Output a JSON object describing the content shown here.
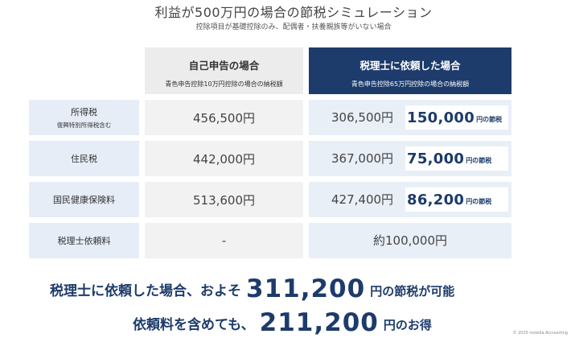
{
  "title": "利益が500万円の場合の節税シミュレーション",
  "subtitle": "控除項目が基礎控除のみ、配偶者・扶養親族等がいない場合",
  "columns": {
    "self": {
      "title": "自己申告の場合",
      "note": "青色申告控除10万円控除の場合の納税額"
    },
    "pro": {
      "title": "税理士に依頼した場合",
      "note": "青色申告控除65万円控除の場合の納税額"
    }
  },
  "rows": [
    {
      "label": "所得税",
      "sublabel": "復興特別所得税含む",
      "self": "456,500円",
      "pro": "306,500円",
      "saving": "150,000",
      "saving_unit": "円の節税"
    },
    {
      "label": "住民税",
      "sublabel": "",
      "self": "442,000円",
      "pro": "367,000円",
      "saving": "75,000",
      "saving_unit": "円の節税"
    },
    {
      "label": "国民健康保険料",
      "sublabel": "",
      "self": "513,600円",
      "pro": "427,400円",
      "saving": "86,200",
      "saving_unit": "円の節税"
    },
    {
      "label": "税理士依頼料",
      "sublabel": "",
      "self": "-",
      "pro": "約100,000円"
    }
  ],
  "summary": {
    "line1_prefix": "税理士に依頼した場合、およそ",
    "line1_amount": "311,200",
    "line1_suffix": "円の節税が可能",
    "line2_prefix": "依頼料を含めても、",
    "line2_amount": "211,200",
    "line2_suffix": "円のお得"
  },
  "copyright": "© 2025 instella Accounting",
  "colors": {
    "navy": "#1d3b6b",
    "label_bg": "#e6edf6",
    "pro_bg": "#e9eff7",
    "self_bg": "#f2f2f2"
  }
}
